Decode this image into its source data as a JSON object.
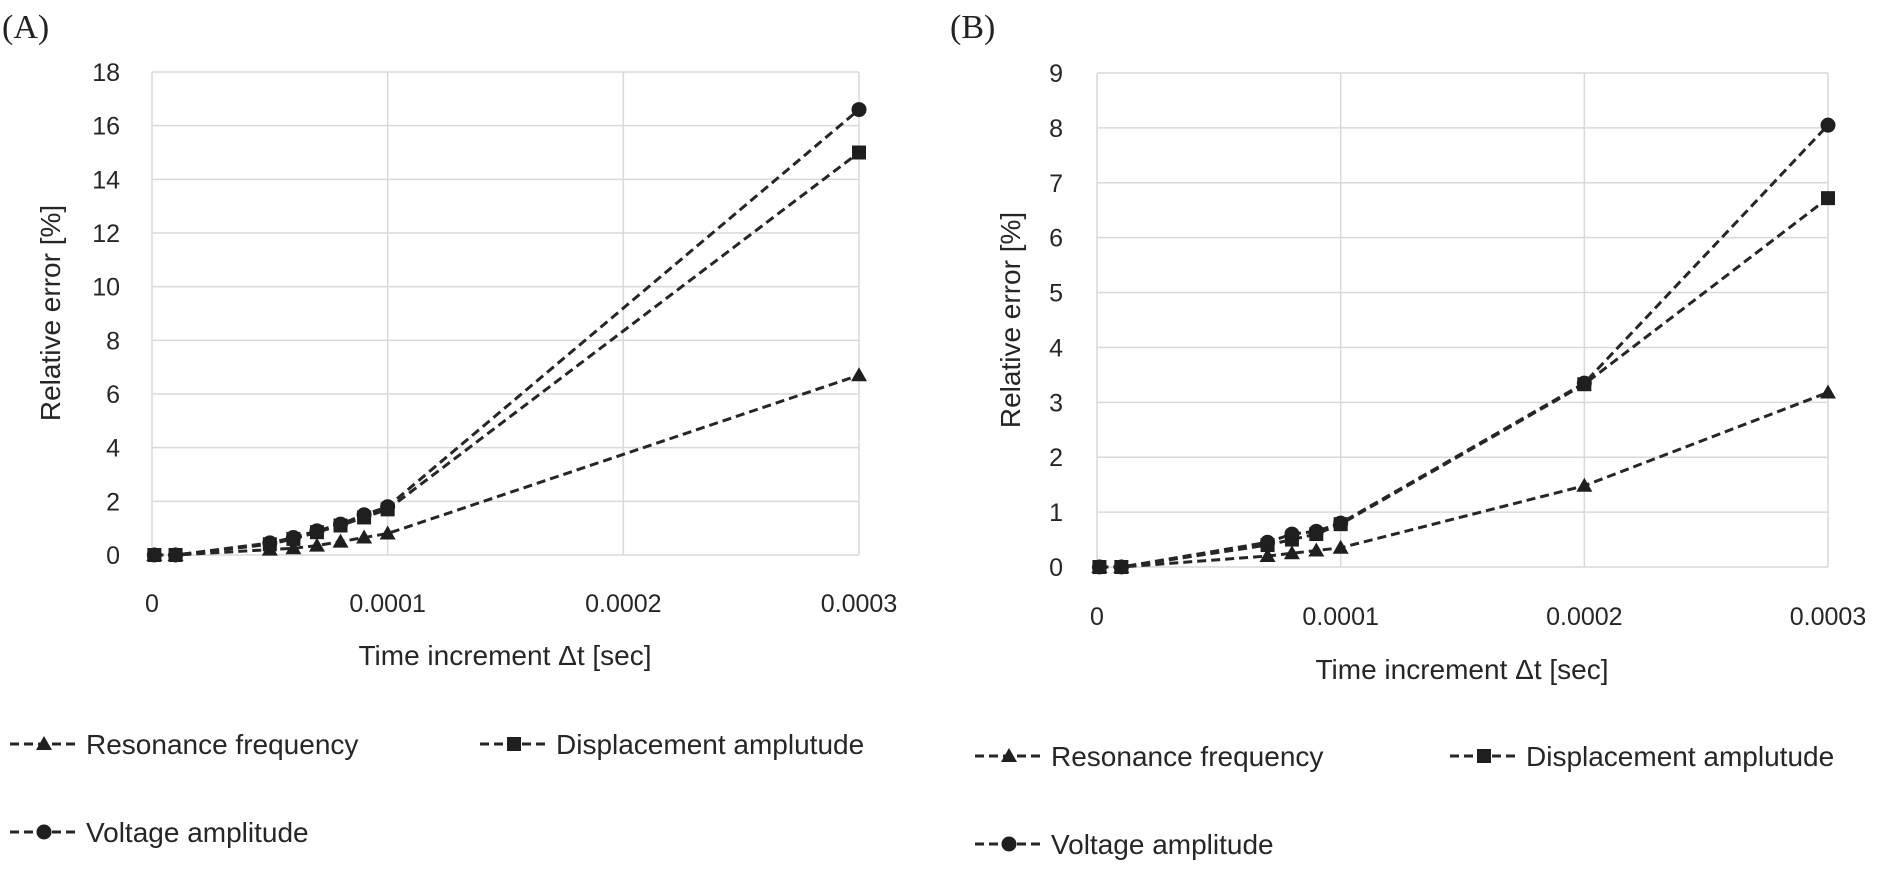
{
  "chart_data": [
    {
      "type": "line",
      "panel": "(A)",
      "xlabel": "Time increment Δt [sec]",
      "ylabel": "Relative error [%]",
      "xlim": [
        0,
        0.0003
      ],
      "ylim": [
        0,
        18
      ],
      "xticks": [
        0,
        0.0001,
        0.0002,
        0.0003
      ],
      "xtick_labels": [
        "0",
        "0.0001",
        "0.0002",
        "0.0003"
      ],
      "yticks": [
        0,
        2,
        4,
        6,
        8,
        10,
        12,
        14,
        16,
        18
      ],
      "ytick_labels": [
        "0",
        "2",
        "4",
        "6",
        "8",
        "10",
        "12",
        "14",
        "16",
        "18"
      ],
      "grid": true,
      "legend_placement": "bottom",
      "series": [
        {
          "name": "Resonance frequency",
          "marker": "triangle",
          "x": [
            1e-06,
            1e-05,
            5e-05,
            6e-05,
            7e-05,
            8e-05,
            9e-05,
            0.0001,
            0.0003
          ],
          "y": [
            0,
            0,
            0.2,
            0.25,
            0.35,
            0.5,
            0.65,
            0.8,
            6.7
          ]
        },
        {
          "name": "Displacement amplutude",
          "marker": "square",
          "x": [
            1e-06,
            1e-05,
            5e-05,
            6e-05,
            7e-05,
            8e-05,
            9e-05,
            0.0001,
            0.0003
          ],
          "y": [
            0,
            0,
            0.4,
            0.6,
            0.85,
            1.1,
            1.4,
            1.7,
            15.0
          ]
        },
        {
          "name": "Voltage amplitude",
          "marker": "circle",
          "x": [
            1e-06,
            1e-05,
            5e-05,
            6e-05,
            7e-05,
            8e-05,
            9e-05,
            0.0001,
            0.0003
          ],
          "y": [
            0,
            0,
            0.45,
            0.65,
            0.9,
            1.15,
            1.5,
            1.8,
            16.6
          ]
        }
      ]
    },
    {
      "type": "line",
      "panel": "(B)",
      "xlabel": "Time increment Δt [sec]",
      "ylabel": "Relative error [%]",
      "xlim": [
        0,
        0.0003
      ],
      "ylim": [
        0,
        9
      ],
      "xticks": [
        0,
        0.0001,
        0.0002,
        0.0003
      ],
      "xtick_labels": [
        "0",
        "0.0001",
        "0.0002",
        "0.0003"
      ],
      "yticks": [
        0,
        1,
        2,
        3,
        4,
        5,
        6,
        7,
        8,
        9
      ],
      "ytick_labels": [
        "0",
        "1",
        "2",
        "3",
        "4",
        "5",
        "6",
        "7",
        "8",
        "9"
      ],
      "grid": true,
      "legend_placement": "bottom",
      "series": [
        {
          "name": "Resonance frequency",
          "marker": "triangle",
          "x": [
            1e-06,
            1e-05,
            7e-05,
            8e-05,
            9e-05,
            0.0001,
            0.0002,
            0.0003
          ],
          "y": [
            0,
            0,
            0.2,
            0.25,
            0.3,
            0.35,
            1.48,
            3.18
          ]
        },
        {
          "name": "Displacement amplutude",
          "marker": "square",
          "x": [
            1e-06,
            1e-05,
            7e-05,
            8e-05,
            9e-05,
            0.0001,
            0.0002,
            0.0003
          ],
          "y": [
            0,
            0,
            0.4,
            0.5,
            0.6,
            0.78,
            3.33,
            6.72
          ]
        },
        {
          "name": "Voltage amplitude",
          "marker": "circle",
          "x": [
            1e-06,
            1e-05,
            7e-05,
            8e-05,
            9e-05,
            0.0001,
            0.0002,
            0.0003
          ],
          "y": [
            0,
            0,
            0.45,
            0.6,
            0.65,
            0.8,
            3.35,
            8.05
          ]
        }
      ]
    }
  ]
}
